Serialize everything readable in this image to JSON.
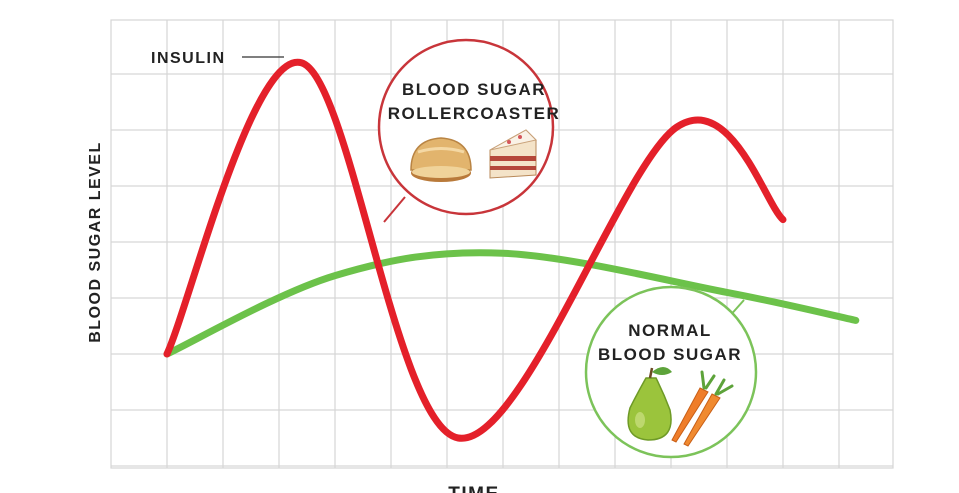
{
  "chart_data": {
    "type": "line",
    "xlabel": "TIME",
    "ylabel": "BLOOD SUGAR LEVEL",
    "grid": true,
    "x": [
      0,
      1,
      2,
      3,
      4,
      5,
      6,
      7,
      8,
      9,
      10,
      11,
      12,
      13
    ],
    "xlim": [
      0,
      13.3
    ],
    "ylim": [
      0,
      8
    ],
    "series": [
      {
        "name": "INSULIN",
        "color": "#e4202a",
        "points": [
          [
            0,
            2
          ],
          [
            2.4,
            7.2
          ],
          [
            5.2,
            0.5
          ],
          [
            9.1,
            6.05
          ],
          [
            11,
            4.4
          ]
        ]
      },
      {
        "name": "",
        "color": "#6cc24a",
        "points": [
          [
            0,
            2
          ],
          [
            3,
            3.4
          ],
          [
            6,
            3.8
          ],
          [
            10,
            3.1
          ],
          [
            12.3,
            2.6
          ]
        ]
      }
    ],
    "annotations": [
      {
        "name": "rollercoaster",
        "lines": [
          "BLOOD SUGAR",
          "ROLLERCOASTER"
        ],
        "color": "#c8353a",
        "icons": [
          "bread-icon",
          "cake-icon"
        ]
      },
      {
        "name": "normal",
        "lines": [
          "NORMAL",
          "BLOOD SUGAR"
        ],
        "color": "#7cc35a",
        "icons": [
          "pear-icon",
          "carrot-icon"
        ]
      }
    ]
  }
}
